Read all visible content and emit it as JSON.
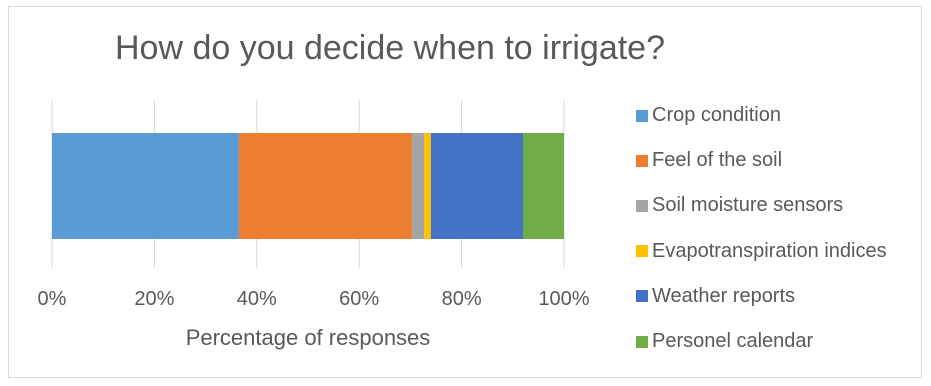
{
  "chart_data": {
    "type": "bar",
    "orientation": "horizontal",
    "stacked": true,
    "percent_stacked": true,
    "title": "How do you decide when to irrigate?",
    "xlabel": "Percentage of responses",
    "ylabel": "",
    "xlim": [
      0,
      100
    ],
    "x_ticks": [
      "0%",
      "20%",
      "40%",
      "60%",
      "80%",
      "100%"
    ],
    "categories": [
      ""
    ],
    "series": [
      {
        "name": "Crop condition",
        "values": [
          36.5
        ],
        "color": "#5b9bd5"
      },
      {
        "name": "Feel of the soil",
        "values": [
          33.8
        ],
        "color": "#ed7d31"
      },
      {
        "name": "Soil moisture sensors",
        "values": [
          2.4
        ],
        "color": "#a5a5a5"
      },
      {
        "name": "Evapotranspiration indices",
        "values": [
          1.3
        ],
        "color": "#ffc000"
      },
      {
        "name": "Weather reports",
        "values": [
          18.0
        ],
        "color": "#4472c4"
      },
      {
        "name": "Personel calendar",
        "values": [
          8.0
        ],
        "color": "#70ad47"
      }
    ],
    "grid": true,
    "legend": "right"
  }
}
